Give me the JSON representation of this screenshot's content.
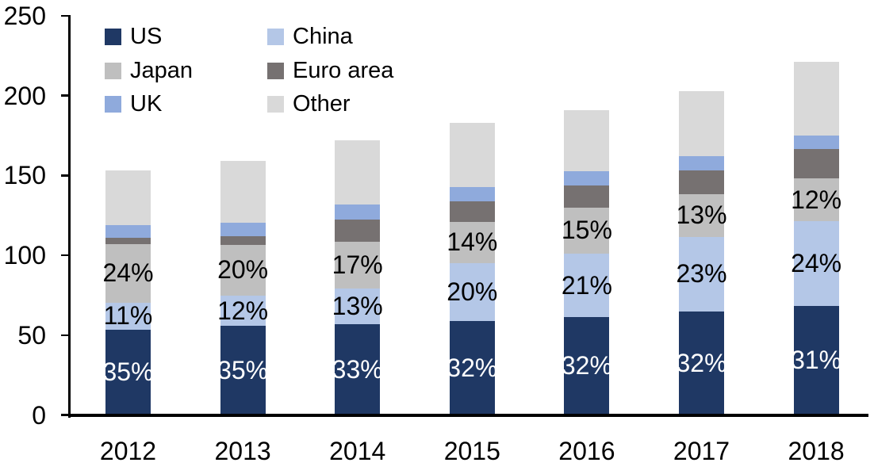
{
  "chart_data": {
    "type": "bar",
    "stacked": true,
    "title": "",
    "xlabel": "",
    "ylabel": "",
    "categories": [
      "2012",
      "2013",
      "2014",
      "2015",
      "2016",
      "2017",
      "2018"
    ],
    "series": [
      {
        "name": "US",
        "color": "#1F3864",
        "values": [
          53.6,
          55.7,
          56.8,
          58.6,
          61.1,
          65.0,
          68.5
        ],
        "labels": [
          "35%",
          "35%",
          "33%",
          "32%",
          "32%",
          "32%",
          "31%"
        ],
        "label_color": "#FFFFFF"
      },
      {
        "name": "China",
        "color": "#B4C7E7",
        "values": [
          16.8,
          19.1,
          22.4,
          36.6,
          40.1,
          46.7,
          53.0
        ],
        "labels": [
          "11%",
          "12%",
          "13%",
          "20%",
          "21%",
          "23%",
          "24%"
        ],
        "label_color": "#000000"
      },
      {
        "name": "Japan",
        "color": "#BFBFBF",
        "values": [
          36.7,
          31.8,
          29.2,
          25.6,
          28.7,
          26.4,
          26.5
        ],
        "labels": [
          "24%",
          "20%",
          "17%",
          "14%",
          "15%",
          "13%",
          "12%"
        ],
        "label_color": "#000000"
      },
      {
        "name": "Euro area",
        "color": "#767171",
        "values": [
          4.1,
          5.2,
          14.0,
          12.8,
          13.6,
          15.3,
          18.6
        ],
        "labels": null,
        "label_color": "#000000"
      },
      {
        "name": "UK",
        "color": "#8FAADC",
        "values": [
          7.7,
          8.8,
          9.4,
          9.1,
          9.1,
          8.6,
          8.6
        ],
        "labels": null,
        "label_color": "#000000"
      },
      {
        "name": "Other",
        "color": "#D9D9D9",
        "values": [
          34.1,
          38.4,
          40.2,
          40.3,
          38.4,
          41.0,
          45.8
        ],
        "labels": null,
        "label_color": "#000000"
      }
    ],
    "totals": [
      153,
      159,
      172,
      183,
      191,
      203,
      221
    ],
    "ylim": [
      0,
      250
    ],
    "yticks": [
      0,
      50,
      100,
      150,
      200,
      250
    ],
    "grid": false,
    "legend_position": "top-left",
    "axis_color": "#000000",
    "background_color": "#FFFFFF"
  }
}
